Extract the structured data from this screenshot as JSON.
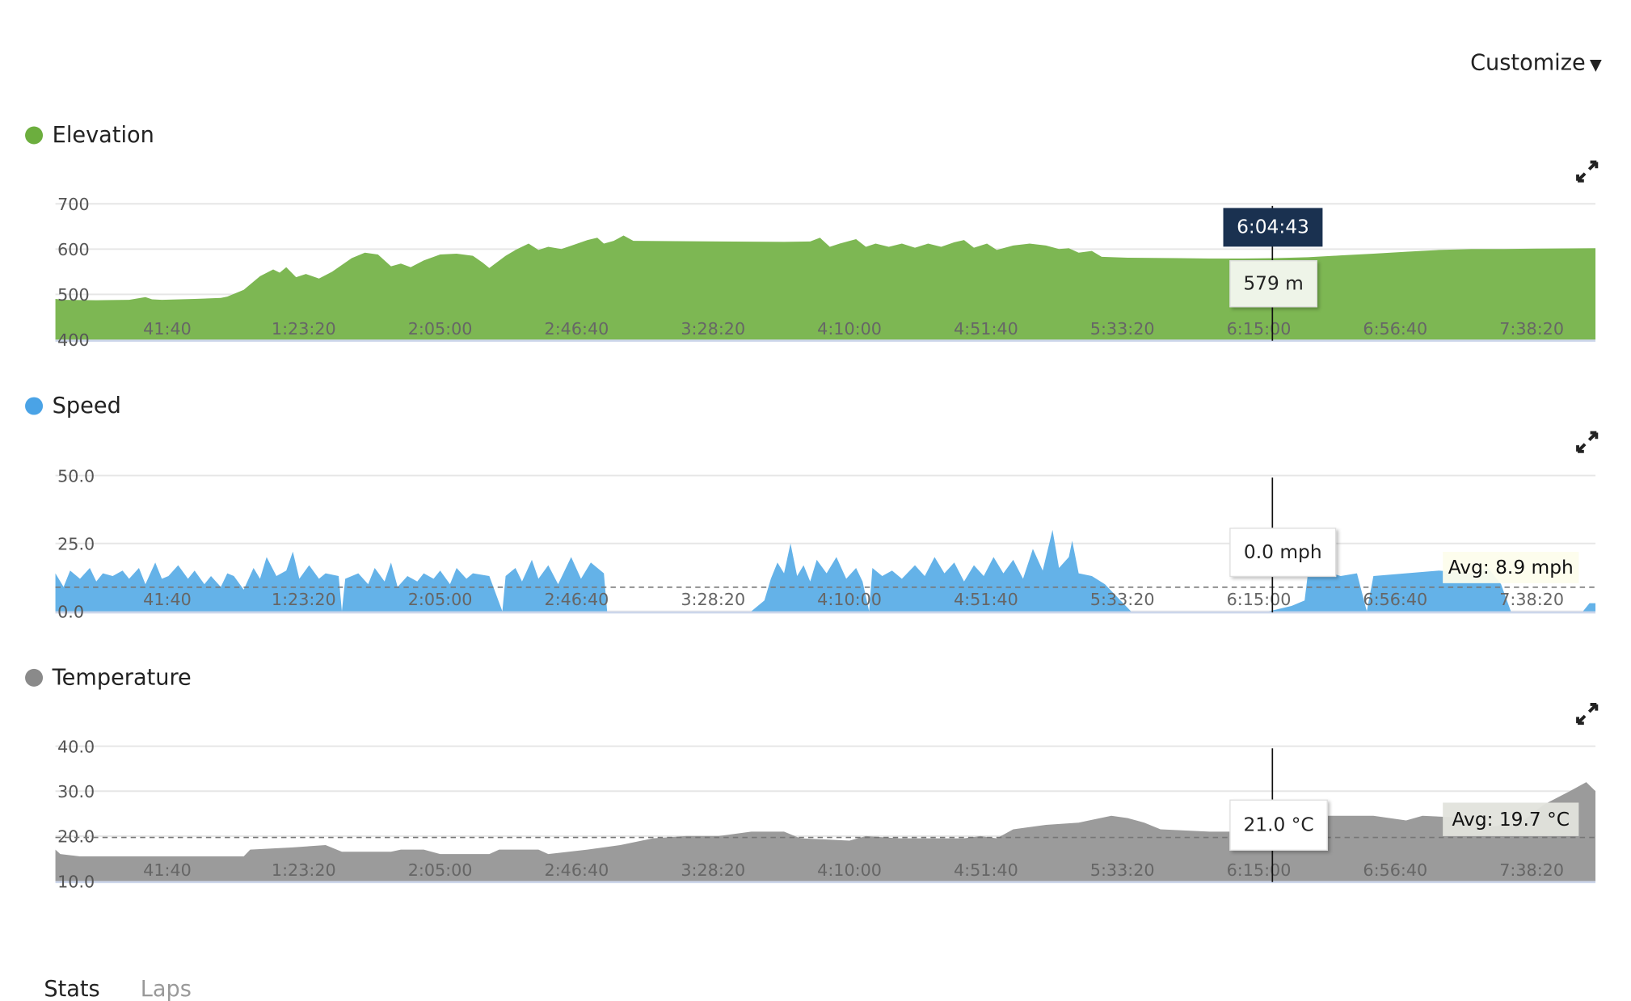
{
  "header": {
    "customize_label": "Customize",
    "customize_icon": "caret-down-icon"
  },
  "tabs": [
    {
      "label": "Stats",
      "active": true
    },
    {
      "label": "Laps",
      "active": false
    }
  ],
  "cursor": {
    "time": "6:04:43"
  },
  "chart_data": [
    {
      "type": "area",
      "title": "Elevation",
      "color": "#7db753",
      "dot_color": "#6cae3e",
      "xlim": [
        "0:07:30",
        "7:57:49"
      ],
      "x_ticks": [
        "41:40",
        "1:23:20",
        "2:05:00",
        "2:46:40",
        "3:28:20",
        "4:10:00",
        "4:51:40",
        "5:33:20",
        "6:15:00",
        "6:56:40",
        "7:38:20"
      ],
      "ylim": [
        400,
        700
      ],
      "y_ticks": [
        "700",
        "600",
        "500",
        "400"
      ],
      "grid": true,
      "tooltip": "579 m",
      "points": [
        [
          "0:07:30",
          490
        ],
        [
          "0:10:00",
          488
        ],
        [
          "0:20:00",
          487
        ],
        [
          "0:30:00",
          488
        ],
        [
          "0:35:00",
          494
        ],
        [
          "0:37:00",
          489
        ],
        [
          "0:40:00",
          488
        ],
        [
          "0:50:00",
          490
        ],
        [
          "0:58:00",
          492
        ],
        [
          "1:00:00",
          495
        ],
        [
          "1:05:00",
          510
        ],
        [
          "1:10:00",
          540
        ],
        [
          "1:14:00",
          555
        ],
        [
          "1:16:00",
          548
        ],
        [
          "1:18:00",
          560
        ],
        [
          "1:21:00",
          538
        ],
        [
          "1:24:00",
          545
        ],
        [
          "1:28:00",
          535
        ],
        [
          "1:32:00",
          550
        ],
        [
          "1:38:00",
          580
        ],
        [
          "1:42:00",
          592
        ],
        [
          "1:46:00",
          588
        ],
        [
          "1:50:00",
          562
        ],
        [
          "1:53:00",
          568
        ],
        [
          "1:56:00",
          560
        ],
        [
          "2:00:00",
          575
        ],
        [
          "2:05:00",
          588
        ],
        [
          "2:10:00",
          590
        ],
        [
          "2:15:00",
          585
        ],
        [
          "2:18:00",
          570
        ],
        [
          "2:20:00",
          558
        ],
        [
          "2:25:00",
          585
        ],
        [
          "2:28:00",
          598
        ],
        [
          "2:32:00",
          612
        ],
        [
          "2:35:00",
          598
        ],
        [
          "2:38:00",
          605
        ],
        [
          "2:42:00",
          600
        ],
        [
          "2:46:00",
          610
        ],
        [
          "2:50:00",
          620
        ],
        [
          "2:53:00",
          625
        ],
        [
          "2:55:00",
          612
        ],
        [
          "2:58:00",
          618
        ],
        [
          "3:01:00",
          630
        ],
        [
          "3:04:00",
          618
        ],
        [
          "3:30:00",
          617
        ],
        [
          "3:50:00",
          616
        ],
        [
          "3:58:00",
          617
        ],
        [
          "4:01:00",
          625
        ],
        [
          "4:04:00",
          605
        ],
        [
          "4:07:00",
          612
        ],
        [
          "4:12:00",
          622
        ],
        [
          "4:15:00",
          605
        ],
        [
          "4:18:00",
          612
        ],
        [
          "4:22:00",
          605
        ],
        [
          "4:26:00",
          612
        ],
        [
          "4:30:00",
          603
        ],
        [
          "4:34:00",
          612
        ],
        [
          "4:38:00",
          605
        ],
        [
          "4:42:00",
          615
        ],
        [
          "4:45:00",
          620
        ],
        [
          "4:48:00",
          603
        ],
        [
          "4:52:00",
          612
        ],
        [
          "4:55:00",
          598
        ],
        [
          "5:00:00",
          608
        ],
        [
          "5:05:00",
          612
        ],
        [
          "5:10:00",
          608
        ],
        [
          "5:14:00",
          600
        ],
        [
          "5:17:00",
          602
        ],
        [
          "5:20:00",
          592
        ],
        [
          "5:24:00",
          596
        ],
        [
          "5:27:00",
          583
        ],
        [
          "5:35:00",
          581
        ],
        [
          "5:50:00",
          580
        ],
        [
          "6:00:00",
          579
        ],
        [
          "6:10:00",
          579
        ],
        [
          "6:20:00",
          580
        ],
        [
          "6:30:00",
          582
        ],
        [
          "6:40:00",
          586
        ],
        [
          "6:50:00",
          590
        ],
        [
          "7:00:00",
          594
        ],
        [
          "7:10:00",
          598
        ],
        [
          "7:20:00",
          600
        ],
        [
          "7:30:00",
          600
        ],
        [
          "7:40:00",
          601
        ],
        [
          "7:57:49",
          602
        ]
      ]
    },
    {
      "type": "area",
      "title": "Speed",
      "color": "#64b2e8",
      "dot_color": "#4aa3e6",
      "xlim": [
        "0:07:30",
        "7:57:49"
      ],
      "x_ticks": [
        "41:40",
        "1:23:20",
        "2:05:00",
        "2:46:40",
        "3:28:20",
        "4:10:00",
        "4:51:40",
        "5:33:20",
        "6:15:00",
        "6:56:40",
        "7:38:20"
      ],
      "ylim": [
        0,
        50
      ],
      "y_ticks": [
        "50.0",
        "25.0",
        "0.0"
      ],
      "grid": true,
      "average": 8.9,
      "average_label": "Avg: 8.9 mph",
      "tooltip": "0.0 mph",
      "points": [
        [
          "0:07:30",
          14
        ],
        [
          "0:10:00",
          9
        ],
        [
          "0:12:00",
          15
        ],
        [
          "0:15:00",
          12
        ],
        [
          "0:18:00",
          16
        ],
        [
          "0:20:00",
          11
        ],
        [
          "0:22:00",
          14
        ],
        [
          "0:25:00",
          13
        ],
        [
          "0:28:00",
          15
        ],
        [
          "0:30:00",
          12
        ],
        [
          "0:33:00",
          16
        ],
        [
          "0:35:00",
          10
        ],
        [
          "0:38:00",
          18
        ],
        [
          "0:40:00",
          12
        ],
        [
          "0:42:00",
          13
        ],
        [
          "0:45:00",
          17
        ],
        [
          "0:48:00",
          12
        ],
        [
          "0:50:00",
          15
        ],
        [
          "0:53:00",
          10
        ],
        [
          "0:55:00",
          13
        ],
        [
          "0:58:00",
          9
        ],
        [
          "1:00:00",
          14
        ],
        [
          "1:02:00",
          13
        ],
        [
          "1:05:00",
          8
        ],
        [
          "1:08:00",
          16
        ],
        [
          "1:10:00",
          12
        ],
        [
          "1:12:00",
          20
        ],
        [
          "1:15:00",
          13
        ],
        [
          "1:18:00",
          15
        ],
        [
          "1:20:00",
          22
        ],
        [
          "1:22:00",
          12
        ],
        [
          "1:25:00",
          17
        ],
        [
          "1:28:00",
          12
        ],
        [
          "1:30:00",
          14
        ],
        [
          "1:34:00",
          13
        ],
        [
          "1:35:00",
          0
        ],
        [
          "1:36:00",
          12
        ],
        [
          "1:40:00",
          14
        ],
        [
          "1:43:00",
          10
        ],
        [
          "1:45:00",
          16
        ],
        [
          "1:48:00",
          11
        ],
        [
          "1:50:00",
          18
        ],
        [
          "1:52:00",
          9
        ],
        [
          "1:55:00",
          13
        ],
        [
          "1:58:00",
          11
        ],
        [
          "2:00:00",
          14
        ],
        [
          "2:03:00",
          12
        ],
        [
          "2:05:00",
          15
        ],
        [
          "2:08:00",
          10
        ],
        [
          "2:10:00",
          16
        ],
        [
          "2:13:00",
          12
        ],
        [
          "2:15:00",
          14
        ],
        [
          "2:20:00",
          13
        ],
        [
          "2:24:00",
          0
        ],
        [
          "2:25:00",
          13
        ],
        [
          "2:28:00",
          16
        ],
        [
          "2:30:00",
          11
        ],
        [
          "2:33:00",
          19
        ],
        [
          "2:35:00",
          12
        ],
        [
          "2:38:00",
          17
        ],
        [
          "2:41:00",
          10
        ],
        [
          "2:45:00",
          20
        ],
        [
          "2:48:00",
          12
        ],
        [
          "2:51:00",
          18
        ],
        [
          "2:55:00",
          14
        ],
        [
          "2:56:00",
          0
        ],
        [
          "3:40:00",
          0
        ],
        [
          "3:44:00",
          4
        ],
        [
          "3:46:00",
          12
        ],
        [
          "3:48:00",
          18
        ],
        [
          "3:50:00",
          14
        ],
        [
          "3:52:00",
          25
        ],
        [
          "3:54:00",
          13
        ],
        [
          "3:56:00",
          17
        ],
        [
          "3:58:00",
          11
        ],
        [
          "4:00:00",
          19
        ],
        [
          "4:03:00",
          14
        ],
        [
          "4:06:00",
          20
        ],
        [
          "4:09:00",
          12
        ],
        [
          "4:12:00",
          16
        ],
        [
          "4:14:00",
          11
        ],
        [
          "4:16:00",
          0
        ],
        [
          "4:17:00",
          16
        ],
        [
          "4:20:00",
          13
        ],
        [
          "4:23:00",
          15
        ],
        [
          "4:26:00",
          12
        ],
        [
          "4:30:00",
          17
        ],
        [
          "4:33:00",
          13
        ],
        [
          "4:36:00",
          20
        ],
        [
          "4:39:00",
          14
        ],
        [
          "4:42:00",
          18
        ],
        [
          "4:45:00",
          11
        ],
        [
          "4:48:00",
          17
        ],
        [
          "4:51:00",
          13
        ],
        [
          "4:54:00",
          20
        ],
        [
          "4:57:00",
          14
        ],
        [
          "5:00:00",
          19
        ],
        [
          "5:03:00",
          12
        ],
        [
          "5:06:00",
          23
        ],
        [
          "5:09:00",
          15
        ],
        [
          "5:12:00",
          30
        ],
        [
          "5:14:00",
          16
        ],
        [
          "5:17:00",
          20
        ],
        [
          "5:18:00",
          26
        ],
        [
          "5:20:00",
          14
        ],
        [
          "5:24:00",
          13
        ],
        [
          "5:28:00",
          10
        ],
        [
          "5:32:00",
          5
        ],
        [
          "5:36:00",
          0
        ],
        [
          "6:18:00",
          0
        ],
        [
          "6:25:00",
          2
        ],
        [
          "6:29:00",
          4
        ],
        [
          "6:30:00",
          14
        ],
        [
          "6:35:00",
          15
        ],
        [
          "6:40:00",
          13
        ],
        [
          "6:45:00",
          14
        ],
        [
          "6:48:00",
          0
        ],
        [
          "6:50:00",
          13
        ],
        [
          "7:00:00",
          14
        ],
        [
          "7:10:00",
          15
        ],
        [
          "7:20:00",
          14
        ],
        [
          "7:25:00",
          16
        ],
        [
          "7:29:00",
          10
        ],
        [
          "7:32:00",
          0
        ],
        [
          "7:54:00",
          0
        ],
        [
          "7:56:00",
          3
        ],
        [
          "7:57:49",
          3
        ]
      ]
    },
    {
      "type": "area",
      "title": "Temperature",
      "color": "#9b9b9b",
      "dot_color": "#8a8a8a",
      "xlim": [
        "0:07:30",
        "7:57:49"
      ],
      "x_ticks": [
        "41:40",
        "1:23:20",
        "2:05:00",
        "2:46:40",
        "3:28:20",
        "4:10:00",
        "4:51:40",
        "5:33:20",
        "6:15:00",
        "6:56:40",
        "7:38:20"
      ],
      "ylim": [
        10,
        40
      ],
      "y_ticks": [
        "40.0",
        "30.0",
        "20.0",
        "10.0"
      ],
      "grid": true,
      "average": 19.7,
      "average_label": "Avg: 19.7 °C",
      "tooltip": "21.0 °C",
      "points": [
        [
          "0:07:30",
          17
        ],
        [
          "0:09:00",
          16
        ],
        [
          "0:15:00",
          15.5
        ],
        [
          "1:05:00",
          15.5
        ],
        [
          "1:07:00",
          17
        ],
        [
          "1:20:00",
          17.5
        ],
        [
          "1:30:00",
          18
        ],
        [
          "1:35:00",
          16.5
        ],
        [
          "1:50:00",
          16.5
        ],
        [
          "1:53:00",
          17
        ],
        [
          "2:00:00",
          17
        ],
        [
          "2:05:00",
          16
        ],
        [
          "2:20:00",
          16
        ],
        [
          "2:23:00",
          17
        ],
        [
          "2:35:00",
          17
        ],
        [
          "2:38:00",
          16
        ],
        [
          "2:50:00",
          17
        ],
        [
          "3:00:00",
          18
        ],
        [
          "3:10:00",
          19.5
        ],
        [
          "3:20:00",
          20
        ],
        [
          "3:30:00",
          20
        ],
        [
          "3:35:00",
          20.5
        ],
        [
          "3:40:00",
          21
        ],
        [
          "3:50:00",
          21
        ],
        [
          "3:55:00",
          19.5
        ],
        [
          "4:10:00",
          19
        ],
        [
          "4:15:00",
          20
        ],
        [
          "4:25:00",
          19.5
        ],
        [
          "4:45:00",
          19.5
        ],
        [
          "4:50:00",
          20
        ],
        [
          "4:55:00",
          19.5
        ],
        [
          "5:00:00",
          21.5
        ],
        [
          "5:10:00",
          22.5
        ],
        [
          "5:20:00",
          23
        ],
        [
          "5:30:00",
          24.5
        ],
        [
          "5:35:00",
          24
        ],
        [
          "5:40:00",
          23
        ],
        [
          "5:45:00",
          21.5
        ],
        [
          "6:00:00",
          21
        ],
        [
          "6:20:00",
          21
        ],
        [
          "6:25:00",
          22.5
        ],
        [
          "6:30:00",
          24.5
        ],
        [
          "6:50:00",
          24.5
        ],
        [
          "7:00:00",
          23.5
        ],
        [
          "7:05:00",
          24.5
        ],
        [
          "7:20:00",
          24
        ],
        [
          "7:25:00",
          22
        ],
        [
          "7:35:00",
          23
        ],
        [
          "7:42:00",
          27
        ],
        [
          "7:50:00",
          30
        ],
        [
          "7:55:00",
          32
        ],
        [
          "7:57:49",
          30
        ]
      ]
    }
  ]
}
